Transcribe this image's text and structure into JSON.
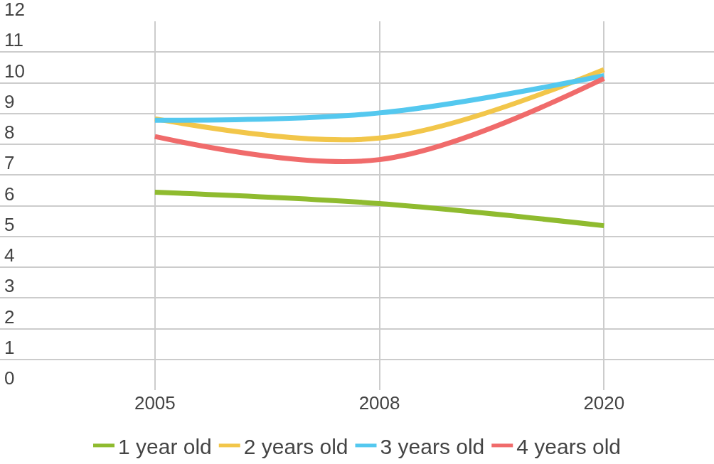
{
  "chart_data": {
    "type": "line",
    "categories": [
      "2005",
      "2008",
      "2020"
    ],
    "series": [
      {
        "name": "1 year old",
        "color": "#8fbb2f",
        "values": [
          6.44,
          6.07,
          5.35
        ]
      },
      {
        "name": "2 years old",
        "color": "#f2c64a",
        "values": [
          8.83,
          8.2,
          10.43
        ]
      },
      {
        "name": "3 years old",
        "color": "#54c8ef",
        "values": [
          8.78,
          9.02,
          10.23
        ]
      },
      {
        "name": "4 years old",
        "color": "#f06b6b",
        "values": [
          8.25,
          7.5,
          10.14
        ]
      }
    ],
    "ylim": [
      0,
      12
    ],
    "yticks": [
      0,
      1,
      2,
      3,
      4,
      5,
      6,
      7,
      8,
      9,
      10,
      11,
      12
    ],
    "grid": true,
    "legend": "bottom",
    "marker": "none",
    "line_style": "solid"
  }
}
